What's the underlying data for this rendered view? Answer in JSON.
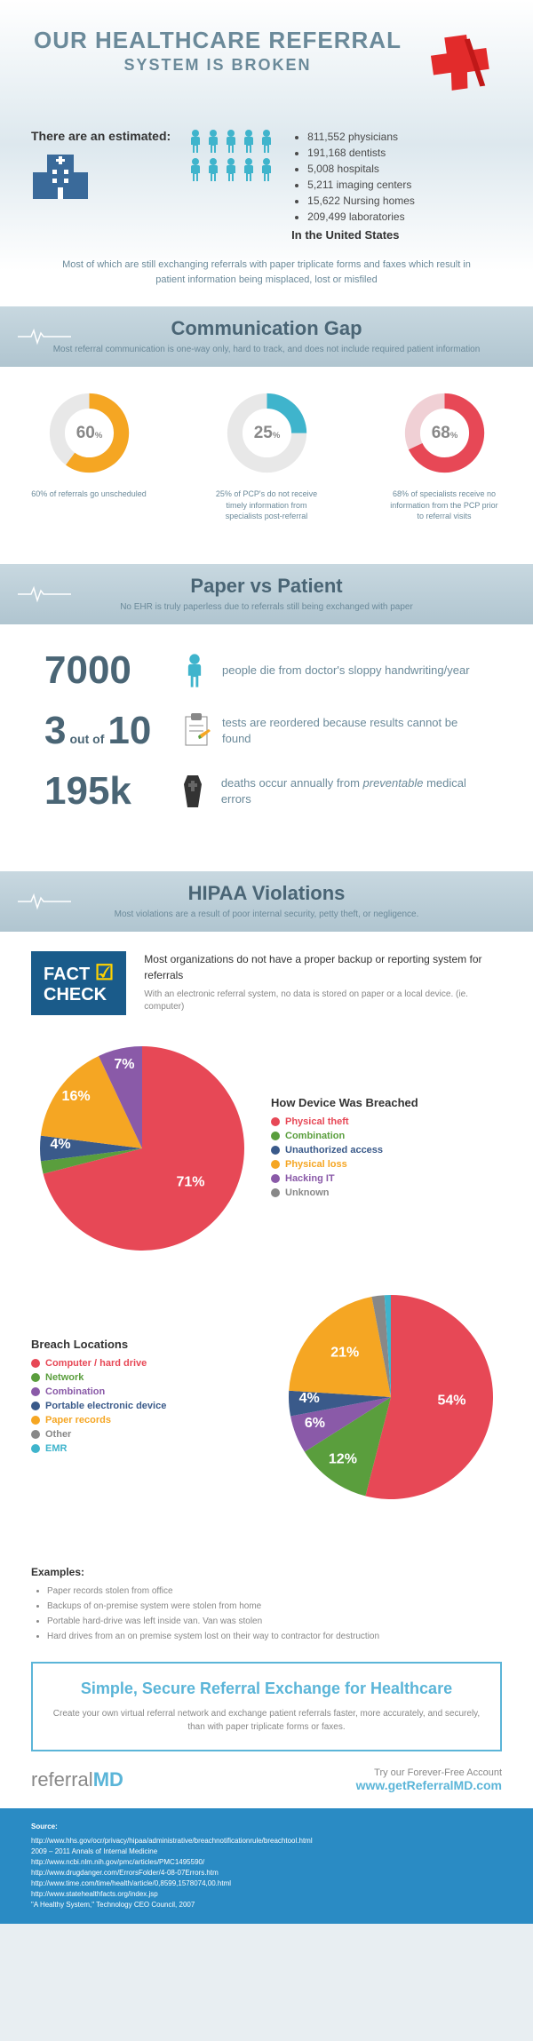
{
  "header": {
    "title": "OUR HEALTHCARE REFERRAL",
    "subtitle": "SYSTEM IS BROKEN"
  },
  "estimated": {
    "label": "There are an estimated:",
    "stats": [
      "811,552 physicians",
      "191,168 dentists",
      "5,008 hospitals",
      "5,211 imaging centers",
      "15,622 Nursing homes",
      "209,499 laboratories"
    ],
    "footer": "In the United States"
  },
  "intro_text": "Most of which are still exchanging referrals with paper triplicate forms and faxes which result in patient information being misplaced, lost or misfiled",
  "sections": {
    "comm": {
      "title": "Communication Gap",
      "sub": "Most referral communication is one-way only, hard to track, and does not include required patient information"
    },
    "paper": {
      "title": "Paper vs Patient",
      "sub": "No EHR is truly paperless due to referrals still being exchanged with paper"
    },
    "hipaa": {
      "title": "HIPAA Violations",
      "sub": "Most violations are a result of poor internal security, petty theft, or negligence."
    }
  },
  "donuts": [
    {
      "percent": 60,
      "color1": "#f5a623",
      "color2": "#e8e8e8",
      "text": "60% of referrals go unscheduled"
    },
    {
      "percent": 25,
      "color1": "#3fb4cc",
      "color2": "#e8e8e8",
      "text": "25% of PCP's do not receive timely information from specialists post-referral"
    },
    {
      "percent": 68,
      "color1": "#e74856",
      "color2": "#f0d0d5",
      "text": "68% of specialists receive no information from the PCP prior to referral visits"
    }
  ],
  "paper_stats": [
    {
      "num": "7000",
      "text": "people die from doctor's sloppy handwriting/year",
      "icon": "person",
      "icon_color": "#3fb4cc"
    },
    {
      "num": "3",
      "mid": "out of",
      "num2": "10",
      "text": "tests are reordered because results cannot be found",
      "icon": "clipboard",
      "icon_color": "#f5a623"
    },
    {
      "num": "195k",
      "text": "deaths occur annually from <i>preventable</i> medical errors",
      "icon": "coffin",
      "icon_color": "#333"
    }
  ],
  "factcheck": {
    "badge1": "FACT",
    "badge2": "CHECK",
    "main": "Most organizations do not  have a proper backup or reporting system for referrals",
    "sub": "With an electronic referral system, no data is stored on paper or a local device. (ie. computer)"
  },
  "pie1": {
    "title": "How Device Was Breached",
    "slices": [
      {
        "label": "Physical theft",
        "value": 71,
        "color": "#e74856"
      },
      {
        "label": "Combination",
        "value": 2,
        "color": "#5a9e3d"
      },
      {
        "label": "Unauthorized access",
        "value": 4,
        "color": "#3a5a8a"
      },
      {
        "label": "Physical loss",
        "value": 16,
        "color": "#f5a623"
      },
      {
        "label": "Hacking IT",
        "value": 7,
        "color": "#8a5aa8"
      },
      {
        "label": "Unknown",
        "value": 0,
        "color": "#888"
      }
    ],
    "labels": [
      "71%",
      "16%",
      "7%",
      "4%"
    ]
  },
  "pie2": {
    "title": "Breach Locations",
    "slices": [
      {
        "label": "Computer / hard drive",
        "value": 54,
        "color": "#e74856"
      },
      {
        "label": "Network",
        "value": 12,
        "color": "#5a9e3d"
      },
      {
        "label": "Combination",
        "value": 6,
        "color": "#8a5aa8"
      },
      {
        "label": "Portable electronic device",
        "value": 4,
        "color": "#3a5a8a"
      },
      {
        "label": "Paper records",
        "value": 21,
        "color": "#f5a623"
      },
      {
        "label": "Other",
        "value": 2,
        "color": "#888"
      },
      {
        "label": "EMR",
        "value": 1,
        "color": "#3fb4cc"
      }
    ],
    "labels": [
      "54%",
      "21%",
      "12%",
      "6%",
      "4%"
    ]
  },
  "examples": {
    "title": "Examples:",
    "items": [
      "Paper records stolen from office",
      "Backups of on-premise system were stolen from home",
      "Portable hard-drive was left inside van. Van was stolen",
      "Hard drives from an on premise system lost on their way to contractor for destruction"
    ]
  },
  "cta": {
    "title": "Simple, Secure Referral Exchange for Healthcare",
    "text": "Create your own virtual referral network and exchange patient referrals faster, more accurately, and securely, than with paper triplicate forms or faxes."
  },
  "footer": {
    "logo1": "referral",
    "logo2": "MD",
    "try": "Try our Forever-Free Account",
    "link": "www.getReferralMD.com"
  },
  "sources": {
    "title": "Source:",
    "items": [
      "http://www.hhs.gov/ocr/privacy/hipaa/administrative/breachnotificationrule/breachtool.html",
      "2009 – 2011 Annals of Internal Medicine",
      "http://www.ncbi.nlm.nih.gov/pmc/articles/PMC1495590/",
      "http://www.drugdanger.com/ErrorsFolder/4-08-07Errors.htm",
      "http://www.time.com/time/health/article/0,8599,1578074,00.html",
      "http://www.statehealthfacts.org/index.jsp",
      "\"A Healthy System,\" Technology CEO Council, 2007"
    ]
  },
  "colors": {
    "cross": "#e22b2b",
    "hospital": "#3a6a9a",
    "person": "#3fb4cc"
  }
}
